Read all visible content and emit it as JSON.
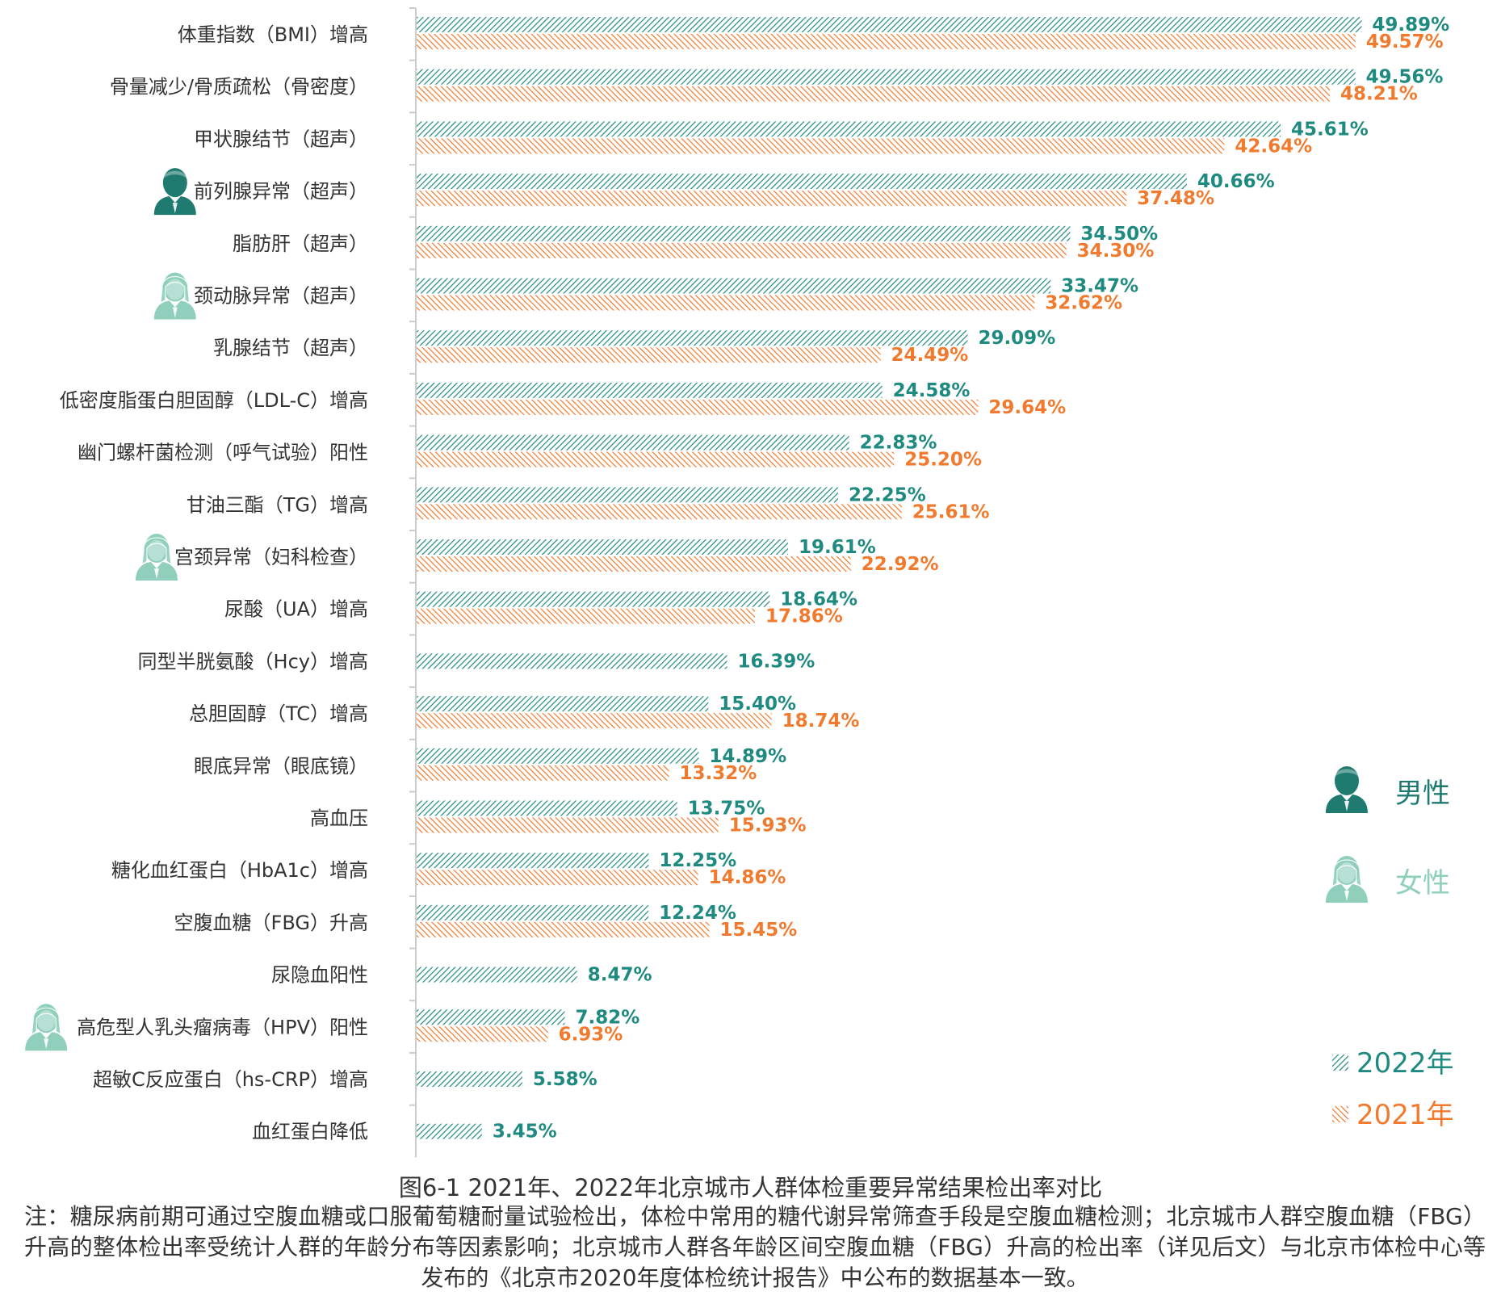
{
  "colors": {
    "series_2022": "#1f8a80",
    "series_2021": "#f07a2e",
    "male": "#1f7a70",
    "female": "#8fcfbc",
    "axis": "#cccccc"
  },
  "legend": {
    "male": {
      "label": "男性",
      "icon": "male-person-icon"
    },
    "female": {
      "label": "女性",
      "icon": "female-person-icon"
    },
    "y2022": "2022年",
    "y2021": "2021年"
  },
  "caption": {
    "title": "图6-1 2021年、2022年北京城市人群体检重要异常结果检出率对比",
    "note": "注：糖尿病前期可通过空腹血糖或口服葡萄糖耐量试验检出，体检中常用的糖代谢异常筛查手段是空腹血糖检测；北京城市人群空腹血糖（FBG）升高的整体检出率受统计人群的年龄分布等因素影响；北京城市人群各年龄区间空腹血糖（FBG）升高的检出率（详见后文）与北京市体检中心等发布的《北京市2020年度体检统计报告》中公布的数据基本一致。"
  },
  "chart_data": {
    "type": "bar",
    "orientation": "horizontal",
    "pattern": "hatched",
    "categories": [
      "体重指数（BMI）增高",
      "骨量减少/骨质疏松（骨密度）",
      "甲状腺结节（超声）",
      "前列腺异常（超声）",
      "脂肪肝（超声）",
      "颈动脉异常（超声）",
      "乳腺结节（超声）",
      "低密度脂蛋白胆固醇（LDL-C）增高",
      "幽门螺杆菌检测（呼气试验）阳性",
      "甘油三酯（TG）增高",
      "宫颈异常（妇科检查）",
      "尿酸（UA）增高",
      "同型半胱氨酸（Hcy）增高",
      "总胆固醇（TC）增高",
      "眼底异常（眼底镜）",
      "高血压",
      "糖化血红蛋白（HbA1c）增高",
      "空腹血糖（FBG）升高",
      "尿隐血阳性",
      "高危型人乳头瘤病毒（HPV）阳性",
      "超敏C反应蛋白（hs-CRP）增高",
      "血红蛋白降低"
    ],
    "gender_icons": [
      null,
      null,
      null,
      "male",
      null,
      "female",
      null,
      null,
      null,
      null,
      "female",
      null,
      null,
      null,
      null,
      null,
      null,
      null,
      null,
      "female",
      null,
      null
    ],
    "series": [
      {
        "name": "2022年",
        "values": [
          49.89,
          49.56,
          45.61,
          40.66,
          34.5,
          33.47,
          29.09,
          24.58,
          22.83,
          22.25,
          19.61,
          18.64,
          16.39,
          15.4,
          14.89,
          13.75,
          12.25,
          12.24,
          8.47,
          7.82,
          5.58,
          3.45
        ],
        "labels": [
          "49.89%",
          "49.56%",
          "45.61%",
          "40.66%",
          "34.50%",
          "33.47%",
          "29.09%",
          "24.58%",
          "22.83%",
          "22.25%",
          "19.61%",
          "18.64%",
          "16.39%",
          "15.40%",
          "14.89%",
          "13.75%",
          "12.25%",
          "12.24%",
          "8.47%",
          "7.82%",
          "5.58%",
          "3.45%"
        ]
      },
      {
        "name": "2021年",
        "values": [
          49.57,
          48.21,
          42.64,
          37.48,
          34.3,
          32.62,
          24.49,
          29.64,
          25.2,
          25.61,
          22.92,
          17.86,
          null,
          18.74,
          13.32,
          15.93,
          14.86,
          15.45,
          null,
          6.93,
          null,
          null
        ],
        "labels": [
          "49.57%",
          "48.21%",
          "42.64%",
          "37.48%",
          "34.30%",
          "32.62%",
          "24.49%",
          "29.64%",
          "25.20%",
          "25.61%",
          "22.92%",
          "17.86%",
          null,
          "18.74%",
          "13.32%",
          "15.93%",
          "14.86%",
          "15.45%",
          null,
          "6.93%",
          null,
          null
        ]
      }
    ],
    "xlim": [
      0,
      50
    ],
    "unit": "%",
    "grid": false
  }
}
